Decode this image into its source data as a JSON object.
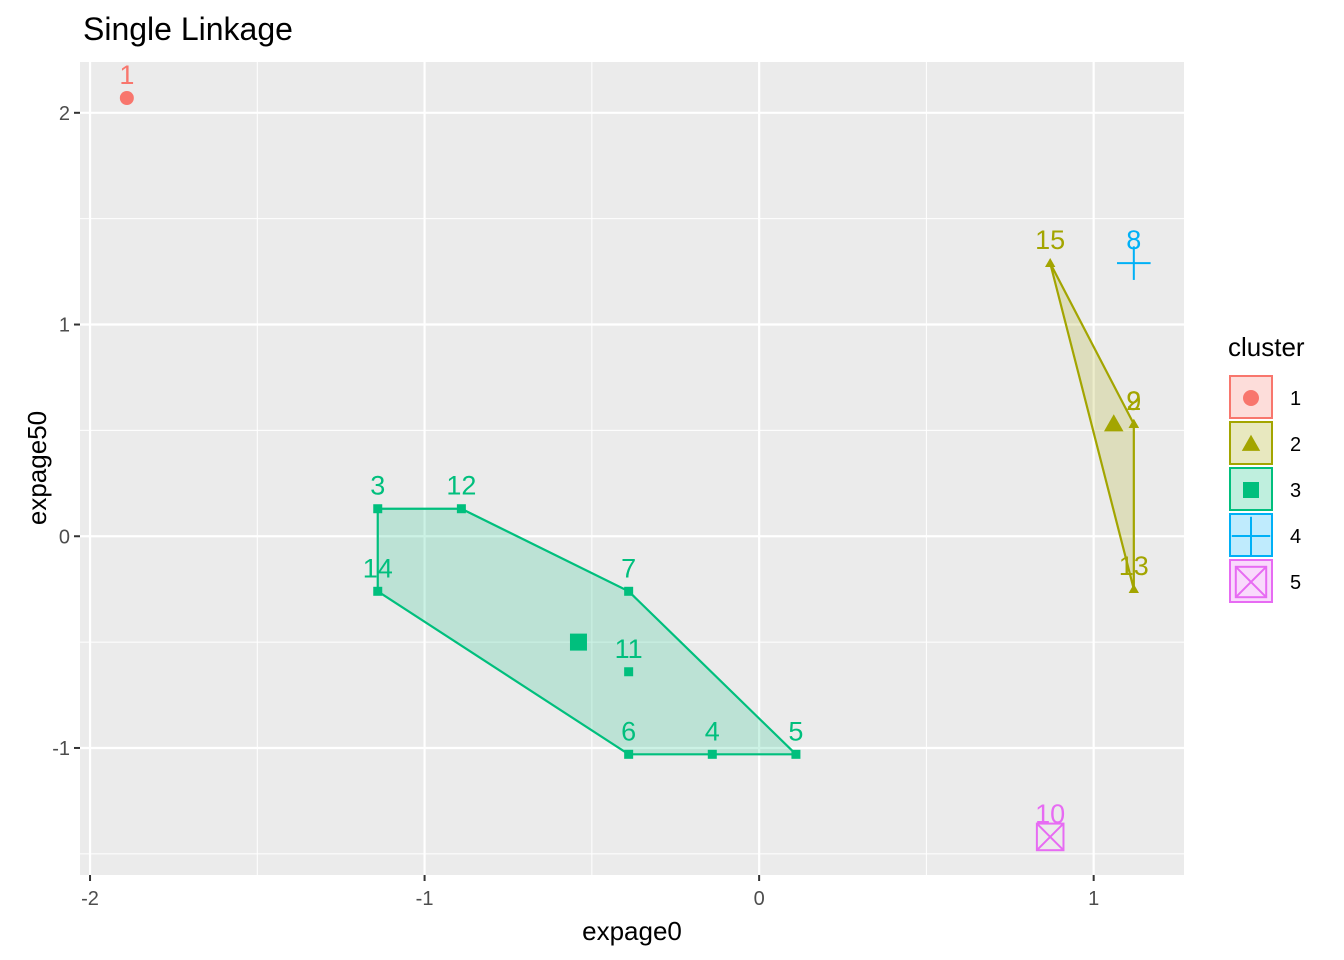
{
  "chart_data": {
    "type": "scatter",
    "title": "Single Linkage",
    "xlabel": "expage0",
    "ylabel": "expage50",
    "xlim": [
      -2.03,
      1.27
    ],
    "ylim": [
      -1.6,
      2.24
    ],
    "x_ticks": [
      -2,
      -1,
      0,
      1
    ],
    "y_ticks": [
      -1,
      0,
      1,
      2
    ],
    "grid": true,
    "legend": {
      "title": "cluster",
      "position": "right",
      "entries": [
        {
          "label": "1",
          "color": "#F8766D",
          "shape": "circle"
        },
        {
          "label": "2",
          "color": "#A3A500",
          "shape": "triangle"
        },
        {
          "label": "3",
          "color": "#00BF7D",
          "shape": "square"
        },
        {
          "label": "4",
          "color": "#00B0F6",
          "shape": "plus"
        },
        {
          "label": "5",
          "color": "#E76BF3",
          "shape": "boxed-x"
        }
      ]
    },
    "clusters": [
      {
        "id": "1",
        "color": "#F8766D",
        "shape": "circle",
        "points": [
          {
            "label": "1",
            "x": -1.89,
            "y": 2.07
          }
        ],
        "centroid": null,
        "hull": []
      },
      {
        "id": "2",
        "color": "#A3A500",
        "shape": "triangle",
        "points": [
          {
            "label": "15",
            "x": 0.87,
            "y": 1.29
          },
          {
            "label": "2",
            "x": 1.12,
            "y": 0.53
          },
          {
            "label": "9",
            "x": 1.12,
            "y": 0.53
          },
          {
            "label": "13",
            "x": 1.12,
            "y": -0.25
          }
        ],
        "centroid": {
          "x": 1.06,
          "y": 0.53
        },
        "hull": [
          "15",
          "2",
          "13"
        ]
      },
      {
        "id": "3",
        "color": "#00BF7D",
        "shape": "square",
        "points": [
          {
            "label": "3",
            "x": -1.14,
            "y": 0.13
          },
          {
            "label": "12",
            "x": -0.89,
            "y": 0.13
          },
          {
            "label": "14",
            "x": -1.14,
            "y": -0.26
          },
          {
            "label": "7",
            "x": -0.39,
            "y": -0.26
          },
          {
            "label": "11",
            "x": -0.39,
            "y": -0.64
          },
          {
            "label": "6",
            "x": -0.39,
            "y": -1.03
          },
          {
            "label": "4",
            "x": -0.14,
            "y": -1.03
          },
          {
            "label": "5",
            "x": 0.11,
            "y": -1.03
          }
        ],
        "centroid": {
          "x": -0.54,
          "y": -0.5
        },
        "hull": [
          "3",
          "12",
          "7",
          "5",
          "6",
          "14"
        ]
      },
      {
        "id": "4",
        "color": "#00B0F6",
        "shape": "plus",
        "points": [
          {
            "label": "8",
            "x": 1.12,
            "y": 1.29
          }
        ],
        "centroid": null,
        "hull": []
      },
      {
        "id": "5",
        "color": "#E76BF3",
        "shape": "boxed-x",
        "points": [
          {
            "label": "10",
            "x": 0.87,
            "y": -1.42
          }
        ],
        "centroid": null,
        "hull": []
      }
    ]
  }
}
